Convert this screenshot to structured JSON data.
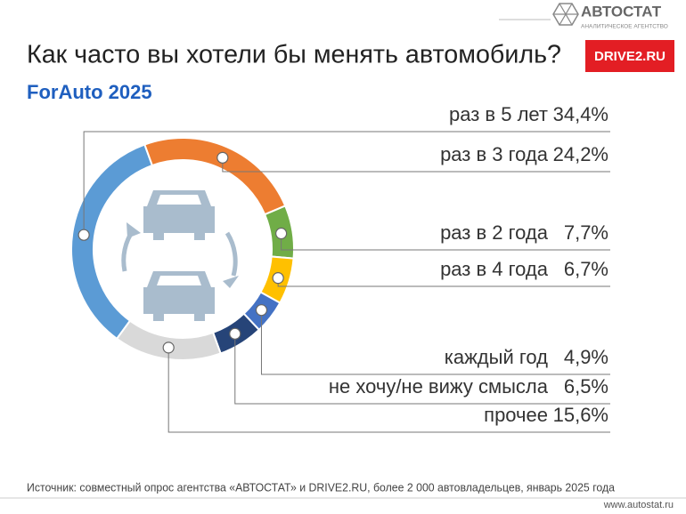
{
  "chart_data": {
    "type": "donut",
    "title": "Как часто вы хотели бы менять автомобиль?",
    "subtitle": "ForAuto 2025",
    "categories": [
      "раз в 5 лет",
      "раз в 3 года",
      "раз в 2 года",
      "раз в 4 года",
      "каждый год",
      "не хочу/не вижу смысла",
      "прочее"
    ],
    "values": [
      34.4,
      24.2,
      7.7,
      6.7,
      4.9,
      6.5,
      15.6
    ],
    "value_labels": [
      "34,4%",
      "24,2%",
      "7,7%",
      "6,7%",
      "4,9%",
      "6,5%",
      "15,6%"
    ],
    "colors": [
      "#5b9bd5",
      "#ed7d31",
      "#70ad47",
      "#ffc000",
      "#4472c4",
      "#264478",
      "#d9d9d9"
    ],
    "brand": "АВТОСТАТ",
    "brand_sub": "АНАЛИТИЧЕСКОЕ АГЕНТСТВО",
    "partner": "DRIVE2.RU",
    "source": "Источник: совместный опрос агентства «АВТОСТАТ» и DRIVE2.RU, более 2 000 автовладельцев, январь 2025 года",
    "url": "www.autostat.ru"
  }
}
